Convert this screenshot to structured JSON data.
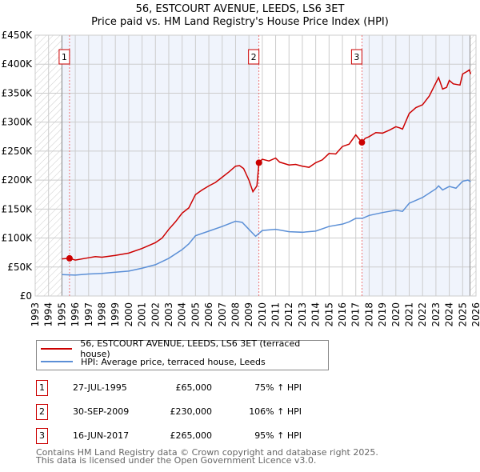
{
  "chart_data": {
    "type": "line",
    "title": "56, ESTCOURT AVENUE, LEEDS, LS6 3ET",
    "subtitle": "Price paid vs. HM Land Registry's House Price Index (HPI)",
    "xlim": [
      1993,
      2026
    ],
    "ylim": [
      0,
      450000
    ],
    "x_ticks": [
      "1993",
      "1994",
      "1995",
      "1996",
      "1997",
      "1998",
      "1999",
      "2000",
      "2001",
      "2002",
      "2003",
      "2004",
      "2005",
      "2006",
      "2007",
      "2008",
      "2009",
      "2010",
      "2011",
      "2012",
      "2013",
      "2014",
      "2015",
      "2016",
      "2017",
      "2018",
      "2019",
      "2020",
      "2021",
      "2022",
      "2023",
      "2024",
      "2025",
      "2026"
    ],
    "y_ticks": [
      {
        "v": 0,
        "label": "£0"
      },
      {
        "v": 50000,
        "label": "£50K"
      },
      {
        "v": 100000,
        "label": "£100K"
      },
      {
        "v": 150000,
        "label": "£150K"
      },
      {
        "v": 200000,
        "label": "£200K"
      },
      {
        "v": 250000,
        "label": "£250K"
      },
      {
        "v": 300000,
        "label": "£300K"
      },
      {
        "v": 350000,
        "label": "£350K"
      },
      {
        "v": 400000,
        "label": "£400K"
      },
      {
        "v": 450000,
        "label": "£450K"
      }
    ],
    "grid": true,
    "data_range": [
      1995,
      2025.55
    ],
    "series": [
      {
        "name": "56, ESTCOURT AVENUE, LEEDS, LS6 3ET (terraced house)",
        "color": "#cc0000",
        "x": [
          1995,
          1995.57,
          1996,
          1997,
          1997.5,
          1998,
          1999,
          2000,
          2001,
          2002,
          2002.5,
          2003,
          2003.5,
          2004,
          2004.5,
          2005,
          2005.5,
          2006,
          2006.5,
          2007,
          2007.5,
          2008,
          2008.3,
          2008.6,
          2009,
          2009.3,
          2009.6,
          2009.75,
          2010,
          2010.5,
          2011,
          2011.3,
          2012,
          2012.5,
          2013,
          2013.5,
          2014,
          2014.5,
          2015,
          2015.5,
          2016,
          2016.5,
          2017,
          2017.46,
          2017.7,
          2018,
          2018.5,
          2019,
          2019.5,
          2020,
          2020.3,
          2020.5,
          2021,
          2021.5,
          2022,
          2022.5,
          2023,
          2023.2,
          2023.5,
          2023.8,
          2024,
          2024.3,
          2024.8,
          2025,
          2025.3,
          2025.5,
          2025.6
        ],
        "y": [
          64000,
          65000,
          62000,
          66000,
          68000,
          67000,
          70000,
          74000,
          82000,
          92000,
          100000,
          115000,
          128000,
          143000,
          152000,
          175000,
          183000,
          190000,
          196000,
          205000,
          214000,
          224000,
          225000,
          220000,
          200000,
          180000,
          190000,
          230000,
          236000,
          233000,
          238000,
          231000,
          226000,
          227000,
          224000,
          222000,
          230000,
          235000,
          246000,
          245000,
          258000,
          262000,
          278000,
          265000,
          272000,
          275000,
          282000,
          281000,
          286000,
          292000,
          290000,
          288000,
          315000,
          325000,
          330000,
          345000,
          368000,
          377000,
          357000,
          360000,
          372000,
          366000,
          364000,
          383000,
          387000,
          390000,
          383000
        ]
      },
      {
        "name": "HPI: Average price, terraced house, Leeds",
        "color": "#5b8fd6",
        "x": [
          1995,
          1996,
          1997,
          1998,
          1999,
          2000,
          2001,
          2002,
          2003,
          2004,
          2004.5,
          2005,
          2006,
          2007,
          2008,
          2008.5,
          2009,
          2009.5,
          2010,
          2011,
          2012,
          2013,
          2014,
          2015,
          2016,
          2016.5,
          2017,
          2017.5,
          2018,
          2019,
          2020,
          2020.5,
          2021,
          2022,
          2023,
          2023.2,
          2023.5,
          2024,
          2024.5,
          2025,
          2025.4,
          2025.6
        ],
        "y": [
          37000,
          36000,
          38000,
          39000,
          41000,
          43000,
          48000,
          54000,
          65000,
          80000,
          90000,
          104000,
          112000,
          120000,
          129000,
          127000,
          115000,
          103000,
          113000,
          115000,
          111000,
          110000,
          112000,
          120000,
          124000,
          128000,
          134000,
          134000,
          139000,
          144000,
          148000,
          146000,
          160000,
          170000,
          185000,
          190000,
          183000,
          189000,
          186000,
          198000,
          200000,
          197000
        ]
      }
    ],
    "sales": [
      {
        "id": "1",
        "x": 1995.57,
        "date": "27-JUL-1995",
        "price": 65000,
        "price_label": "£65,000",
        "hpi": "75% ↑ HPI"
      },
      {
        "id": "2",
        "x": 2009.75,
        "date": "30-SEP-2009",
        "price": 230000,
        "price_label": "£230,000",
        "hpi": "106% ↑ HPI"
      },
      {
        "id": "3",
        "x": 2017.46,
        "date": "16-JUN-2017",
        "price": 265000,
        "price_label": "£265,000",
        "hpi": "95% ↑ HPI"
      }
    ]
  },
  "footer": {
    "line1": "Contains HM Land Registry data © Crown copyright and database right 2025.",
    "line2": "This data is licensed under the Open Government Licence v3.0."
  }
}
